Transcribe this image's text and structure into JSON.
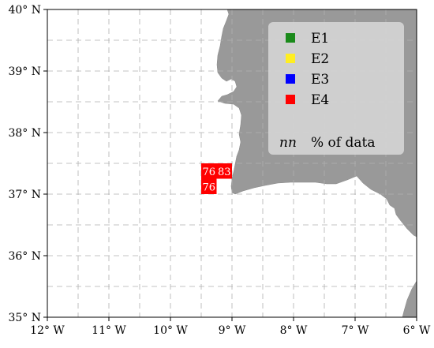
{
  "map": {
    "x_ticks": [
      {
        "lon": -12,
        "label": "12° W"
      },
      {
        "lon": -11,
        "label": "11° W"
      },
      {
        "lon": -10,
        "label": "10° W"
      },
      {
        "lon": -9,
        "label": "9° W"
      },
      {
        "lon": -8,
        "label": "8° W"
      },
      {
        "lon": -7,
        "label": "7° W"
      },
      {
        "lon": -6,
        "label": "6° W"
      }
    ],
    "y_ticks": [
      {
        "lat": 40,
        "label": "40° N"
      },
      {
        "lat": 39,
        "label": "39° N"
      },
      {
        "lat": 38,
        "label": "38° N"
      },
      {
        "lat": 37,
        "label": "37° N"
      },
      {
        "lat": 36,
        "label": "36° N"
      },
      {
        "lat": 35,
        "label": "35° N"
      }
    ],
    "lon_range": [
      -12,
      -6
    ],
    "lat_range": [
      35,
      40
    ],
    "grid_step_deg": 0.5,
    "grid": true,
    "land_color": "#999999",
    "ocean_color": "#ffffff",
    "legend": {
      "placement": "top-right",
      "items": [
        {
          "label": "E1",
          "color": "#1a8a1a"
        },
        {
          "label": "E2",
          "color": "#ffee22"
        },
        {
          "label": "E3",
          "color": "#0000ff"
        },
        {
          "label": "E4",
          "color": "#ff0000"
        }
      ],
      "nn_symbol": "nn",
      "nn_label": "% of data"
    },
    "cells": [
      {
        "lon": -9.5,
        "lat": 37.25,
        "value": "76",
        "class": "E4"
      },
      {
        "lon": -9.25,
        "lat": 37.25,
        "value": "83",
        "class": "E4"
      },
      {
        "lon": -9.5,
        "lat": 37.0,
        "value": "76",
        "class": "E4"
      }
    ]
  }
}
